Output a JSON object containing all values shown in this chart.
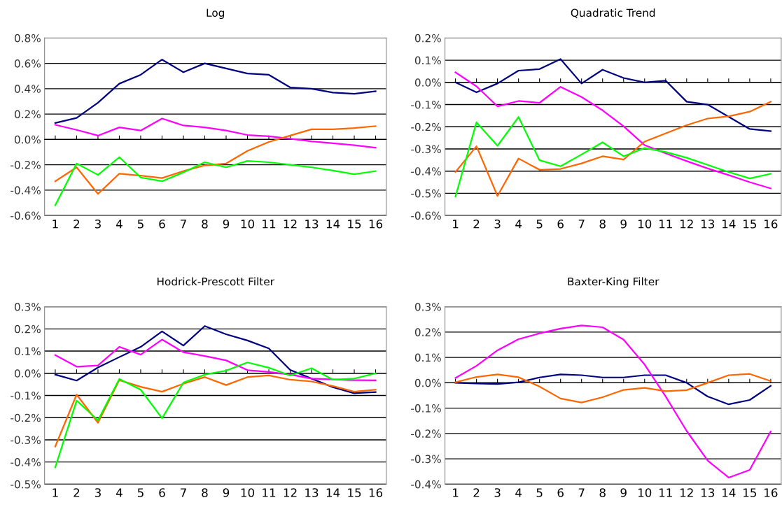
{
  "chart_data": [
    {
      "type": "line",
      "title": "Log",
      "categories": [
        "1",
        "2",
        "3",
        "4",
        "5",
        "6",
        "7",
        "8",
        "9",
        "10",
        "11",
        "12",
        "13",
        "14",
        "15",
        "16"
      ],
      "ylim": [
        -0.6,
        0.8
      ],
      "yticks": [
        {
          "value": -0.6,
          "label": "-0.6%"
        },
        {
          "value": -0.4,
          "label": "-0.4%"
        },
        {
          "value": -0.2,
          "label": "-0.2%"
        },
        {
          "value": 0.0,
          "label": "0.0%"
        },
        {
          "value": 0.2,
          "label": "0.2%"
        },
        {
          "value": 0.4,
          "label": "0.4%"
        },
        {
          "value": 0.6,
          "label": "0.6%"
        },
        {
          "value": 0.8,
          "label": "0.8%"
        }
      ],
      "grid": "y",
      "series": [
        {
          "color": "#000080",
          "values": [
            0.13,
            0.17,
            0.29,
            0.44,
            0.51,
            0.63,
            0.53,
            0.6,
            0.56,
            0.52,
            0.51,
            0.41,
            0.4,
            0.37,
            0.36,
            0.38
          ]
        },
        {
          "color": "#ff00ff",
          "values": [
            0.115,
            0.075,
            0.03,
            0.095,
            0.07,
            0.165,
            0.11,
            0.095,
            0.07,
            0.035,
            0.025,
            0.005,
            -0.015,
            -0.03,
            -0.045,
            -0.065
          ]
        },
        {
          "color": "#ff6600",
          "values": [
            -0.33,
            -0.22,
            -0.43,
            -0.27,
            -0.285,
            -0.305,
            -0.25,
            -0.205,
            -0.19,
            -0.09,
            -0.02,
            0.03,
            0.08,
            0.08,
            0.09,
            0.105
          ]
        },
        {
          "color": "#00ff00",
          "values": [
            -0.52,
            -0.19,
            -0.28,
            -0.14,
            -0.3,
            -0.33,
            -0.26,
            -0.18,
            -0.22,
            -0.17,
            -0.18,
            -0.2,
            -0.22,
            -0.245,
            -0.275,
            -0.25
          ]
        }
      ]
    },
    {
      "type": "line",
      "title": "Quadratic Trend",
      "categories": [
        "1",
        "2",
        "3",
        "4",
        "5",
        "6",
        "7",
        "8",
        "9",
        "10",
        "11",
        "12",
        "13",
        "14",
        "15",
        "16"
      ],
      "ylim": [
        -0.6,
        0.2
      ],
      "yticks": [
        {
          "value": -0.6,
          "label": "-0.6%"
        },
        {
          "value": -0.5,
          "label": "-0.5%"
        },
        {
          "value": -0.4,
          "label": "-0.4%"
        },
        {
          "value": -0.3,
          "label": "-0.3%"
        },
        {
          "value": -0.2,
          "label": "-0.2%"
        },
        {
          "value": -0.1,
          "label": "-0.1%"
        },
        {
          "value": 0.0,
          "label": "0.0%"
        },
        {
          "value": 0.1,
          "label": "0.1%"
        },
        {
          "value": 0.2,
          "label": "0.2%"
        }
      ],
      "grid": "y",
      "series": [
        {
          "color": "#000080",
          "values": [
            0.0,
            -0.045,
            -0.005,
            0.053,
            0.06,
            0.105,
            -0.005,
            0.057,
            0.02,
            0.0,
            0.008,
            -0.087,
            -0.1,
            -0.155,
            -0.21,
            -0.22
          ]
        },
        {
          "color": "#ff00ff",
          "values": [
            0.045,
            -0.018,
            -0.108,
            -0.084,
            -0.092,
            -0.02,
            -0.066,
            -0.126,
            -0.198,
            -0.283,
            -0.32,
            -0.355,
            -0.388,
            -0.418,
            -0.45,
            -0.478
          ]
        },
        {
          "color": "#ff6600",
          "values": [
            -0.404,
            -0.288,
            -0.512,
            -0.343,
            -0.394,
            -0.39,
            -0.365,
            -0.333,
            -0.348,
            -0.267,
            -0.23,
            -0.193,
            -0.163,
            -0.153,
            -0.132,
            -0.087
          ]
        },
        {
          "color": "#00ff00",
          "values": [
            -0.515,
            -0.18,
            -0.286,
            -0.156,
            -0.351,
            -0.378,
            -0.325,
            -0.27,
            -0.333,
            -0.296,
            -0.314,
            -0.34,
            -0.372,
            -0.404,
            -0.433,
            -0.412
          ]
        }
      ]
    },
    {
      "type": "line",
      "title": "Hodrick-Prescott Filter",
      "categories": [
        "1",
        "2",
        "3",
        "4",
        "5",
        "6",
        "7",
        "8",
        "9",
        "10",
        "11",
        "12",
        "13",
        "14",
        "15",
        "16"
      ],
      "ylim": [
        -0.5,
        0.3
      ],
      "yticks": [
        {
          "value": -0.5,
          "label": "-0.5%"
        },
        {
          "value": -0.4,
          "label": "-0.4%"
        },
        {
          "value": -0.3,
          "label": "-0.3%"
        },
        {
          "value": -0.2,
          "label": "-0.2%"
        },
        {
          "value": -0.1,
          "label": "-0.1%"
        },
        {
          "value": 0.0,
          "label": "0.0%"
        },
        {
          "value": 0.1,
          "label": "0.1%"
        },
        {
          "value": 0.2,
          "label": "0.2%"
        },
        {
          "value": 0.3,
          "label": "0.3%"
        }
      ],
      "grid": "y",
      "series": [
        {
          "color": "#000080",
          "values": [
            -0.006,
            -0.033,
            0.026,
            0.073,
            0.119,
            0.189,
            0.125,
            0.213,
            0.176,
            0.148,
            0.112,
            0.015,
            -0.024,
            -0.063,
            -0.09,
            -0.085
          ]
        },
        {
          "color": "#ff00ff",
          "values": [
            0.082,
            0.03,
            0.035,
            0.119,
            0.084,
            0.152,
            0.095,
            0.078,
            0.058,
            0.014,
            0.006,
            -0.006,
            -0.024,
            -0.028,
            -0.031,
            -0.032
          ]
        },
        {
          "color": "#ff6600",
          "values": [
            -0.33,
            -0.096,
            -0.223,
            -0.031,
            -0.061,
            -0.083,
            -0.047,
            -0.017,
            -0.053,
            -0.017,
            -0.01,
            -0.029,
            -0.037,
            -0.058,
            -0.083,
            -0.074
          ]
        },
        {
          "color": "#00ff00",
          "values": [
            -0.424,
            -0.123,
            -0.212,
            -0.026,
            -0.074,
            -0.203,
            -0.042,
            -0.006,
            0.012,
            0.049,
            0.025,
            -0.01,
            0.023,
            -0.029,
            -0.024,
            0.0
          ]
        }
      ]
    },
    {
      "type": "line",
      "title": "Baxter-King Filter",
      "categories": [
        "1",
        "2",
        "3",
        "4",
        "5",
        "6",
        "7",
        "8",
        "9",
        "10",
        "11",
        "12",
        "13",
        "14",
        "15",
        "16"
      ],
      "ylim": [
        -0.4,
        0.3
      ],
      "yticks": [
        {
          "value": -0.4,
          "label": "-0.4%"
        },
        {
          "value": -0.3,
          "label": "-0.3%"
        },
        {
          "value": -0.2,
          "label": "-0.2%"
        },
        {
          "value": -0.1,
          "label": "-0.1%"
        },
        {
          "value": 0.0,
          "label": "0.0%"
        },
        {
          "value": 0.1,
          "label": "0.1%"
        },
        {
          "value": 0.2,
          "label": "0.2%"
        },
        {
          "value": 0.3,
          "label": "0.3%"
        }
      ],
      "grid": "y",
      "series": [
        {
          "color": "#000080",
          "values": [
            0.0,
            -0.003,
            -0.005,
            0.002,
            0.021,
            0.033,
            0.03,
            0.021,
            0.021,
            0.03,
            0.03,
            0.0,
            -0.054,
            -0.085,
            -0.068,
            -0.012
          ]
        },
        {
          "color": "#ff00ff",
          "values": [
            0.019,
            0.067,
            0.128,
            0.172,
            0.195,
            0.214,
            0.226,
            0.219,
            0.17,
            0.072,
            -0.054,
            -0.19,
            -0.307,
            -0.374,
            -0.344,
            -0.192
          ]
        },
        {
          "color": "#ff6600",
          "values": [
            0.002,
            0.023,
            0.033,
            0.022,
            -0.015,
            -0.062,
            -0.078,
            -0.057,
            -0.028,
            -0.02,
            -0.033,
            -0.029,
            0.0,
            0.03,
            0.035,
            0.007
          ]
        }
      ]
    }
  ]
}
